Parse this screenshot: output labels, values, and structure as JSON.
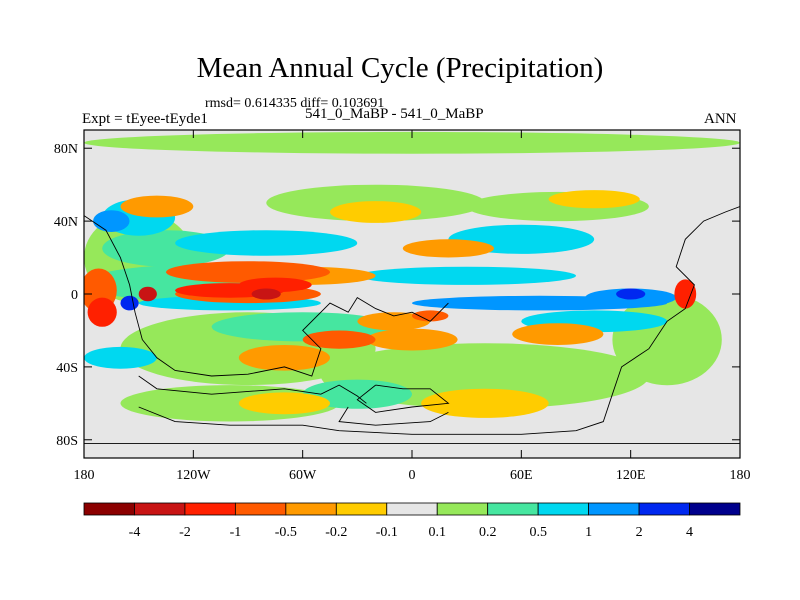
{
  "chart_data": {
    "type": "heatmap",
    "title": "Mean Annual Cycle (Precipitation)",
    "stats": "rmsd= 0.614335 diff= 0.103691",
    "left_label": "Expt = tEyee-tEyde1",
    "center_label": "541_0_MaBP - 541_0_MaBP",
    "right_label": "ANN",
    "x_range": [
      -180,
      180
    ],
    "y_range": [
      -90,
      90
    ],
    "x_ticks": [
      {
        "value": -180,
        "label": "180"
      },
      {
        "value": -120,
        "label": "120W"
      },
      {
        "value": -60,
        "label": "60W"
      },
      {
        "value": 0,
        "label": "0"
      },
      {
        "value": 60,
        "label": "60E"
      },
      {
        "value": 120,
        "label": "120E"
      },
      {
        "value": 180,
        "label": "180"
      }
    ],
    "y_ticks": [
      {
        "value": 80,
        "label": "80N"
      },
      {
        "value": 40,
        "label": "40N"
      },
      {
        "value": 0,
        "label": "0"
      },
      {
        "value": -40,
        "label": "40S"
      },
      {
        "value": -80,
        "label": "80S"
      }
    ],
    "colorbar": {
      "levels": [
        "-4",
        "-2",
        "-1",
        "-0.5",
        "-0.2",
        "-0.1",
        "0.1",
        "0.2",
        "0.5",
        "1",
        "2",
        "4"
      ],
      "colors": [
        "#8b0000",
        "#c81414",
        "#ff2000",
        "#ff5a00",
        "#ff9a00",
        "#ffcc00",
        "#e6e6e6",
        "#96e85a",
        "#46e6a0",
        "#00d8f0",
        "#0096ff",
        "#0028f0",
        "#00008c"
      ]
    },
    "field_colors": {
      "background": "#e6e6e6",
      "neutral_band": "#96e85a",
      "positive_mid": "#46e6a0",
      "positive_high": "#00d8f0",
      "positive_strong": "#0096ff",
      "positive_extreme": "#0028f0",
      "negative_low": "#ffcc00",
      "negative_mid": "#ff9a00",
      "negative_high": "#ff5a00",
      "negative_strong": "#ff2000",
      "negative_extreme": "#c81414"
    }
  }
}
